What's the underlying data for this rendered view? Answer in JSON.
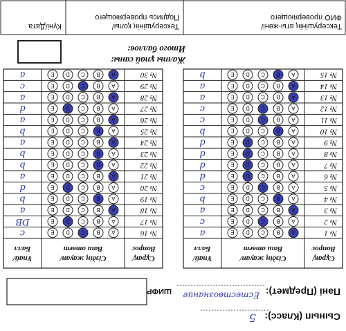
{
  "header": {
    "class_label": "Сынып (Класс):",
    "class_value": "5",
    "subject_label": "Пәні (Предмет):",
    "subject_value": "Естествознание",
    "cipher_label": "ШИФР"
  },
  "options": [
    "A",
    "B",
    "C",
    "D",
    "E"
  ],
  "answer_tables": [
    {
      "headers": [
        [
          "Сұрақ/",
          "Вопрос"
        ],
        [
          "Сіздің жауап/",
          "Ваш ответ"
        ],
        [
          "Ұпай/",
          "Балл"
        ]
      ],
      "rows": [
        {
          "question": "№ 1",
          "marked": "A",
          "score": "a"
        },
        {
          "question": "№ 2",
          "marked": "C",
          "score": "c"
        },
        {
          "question": "№ 3",
          "marked": "A",
          "score": "a"
        },
        {
          "question": "№ 4",
          "marked": "B",
          "score": "b"
        },
        {
          "question": "№ 5",
          "marked": "C",
          "score": "c"
        },
        {
          "question": "№ 6",
          "marked": "D",
          "score": "d"
        },
        {
          "question": "№ 7",
          "marked": "D",
          "score": "d"
        },
        {
          "question": "№ 8",
          "marked": "D",
          "score": "d"
        },
        {
          "question": "№ 9",
          "marked": "D",
          "score": "d"
        },
        {
          "question": "№ 10",
          "marked": "B",
          "score": "b"
        },
        {
          "question": "№ 11",
          "marked": "C",
          "score": "c"
        },
        {
          "question": "№ 12",
          "marked": "C",
          "score": "c"
        },
        {
          "question": "№ 13",
          "marked": "A",
          "score": "a"
        },
        {
          "question": "№ 14",
          "marked": "A",
          "score": "a"
        },
        {
          "question": "№ 15",
          "marked": "B",
          "score": "b"
        }
      ]
    },
    {
      "headers": [
        [
          "Сұрақ/",
          "Вопрос"
        ],
        [
          "Сіздің жауап/",
          "Ваш ответ"
        ],
        [
          "Ұпай/",
          "Балл"
        ]
      ],
      "rows": [
        {
          "question": "№ 16",
          "marked": "C",
          "score": "c"
        },
        {
          "question": "№ 17",
          "marked": "D",
          "score": "DB"
        },
        {
          "question": "№ 18",
          "marked": "A",
          "score": "a"
        },
        {
          "question": "№ 19",
          "marked": "B",
          "score": "b"
        },
        {
          "question": "№ 20",
          "marked": "D",
          "score": "d"
        },
        {
          "question": "№ 21",
          "marked": "A",
          "score": "a"
        },
        {
          "question": "№ 22",
          "marked": "B",
          "score": "b"
        },
        {
          "question": "№ 23",
          "marked": "B",
          "score": "b"
        },
        {
          "question": "№ 24",
          "marked": "A",
          "score": "a"
        },
        {
          "question": "№ 25",
          "marked": "B",
          "score": "b"
        },
        {
          "question": "№ 26",
          "marked": "A",
          "score": "a"
        },
        {
          "question": "№ 27",
          "marked": "D",
          "score": "d"
        },
        {
          "question": "№ 28",
          "marked": "A",
          "score": "a"
        },
        {
          "question": "№ 29",
          "marked": "C",
          "score": "c"
        },
        {
          "question": "№ 30",
          "marked": "A",
          "score": "a"
        }
      ]
    }
  ],
  "total": {
    "label_kz": "Жалпы ұпай саны:",
    "label_ru": "Итого баллов:"
  },
  "footer": [
    [
      "Тексерушінің аты-жөні/",
      "ФИО проверяющего"
    ],
    [
      "Тексерушінің қолы/",
      "Подпись проверяющего"
    ],
    [
      "Күні/Дата"
    ]
  ]
}
